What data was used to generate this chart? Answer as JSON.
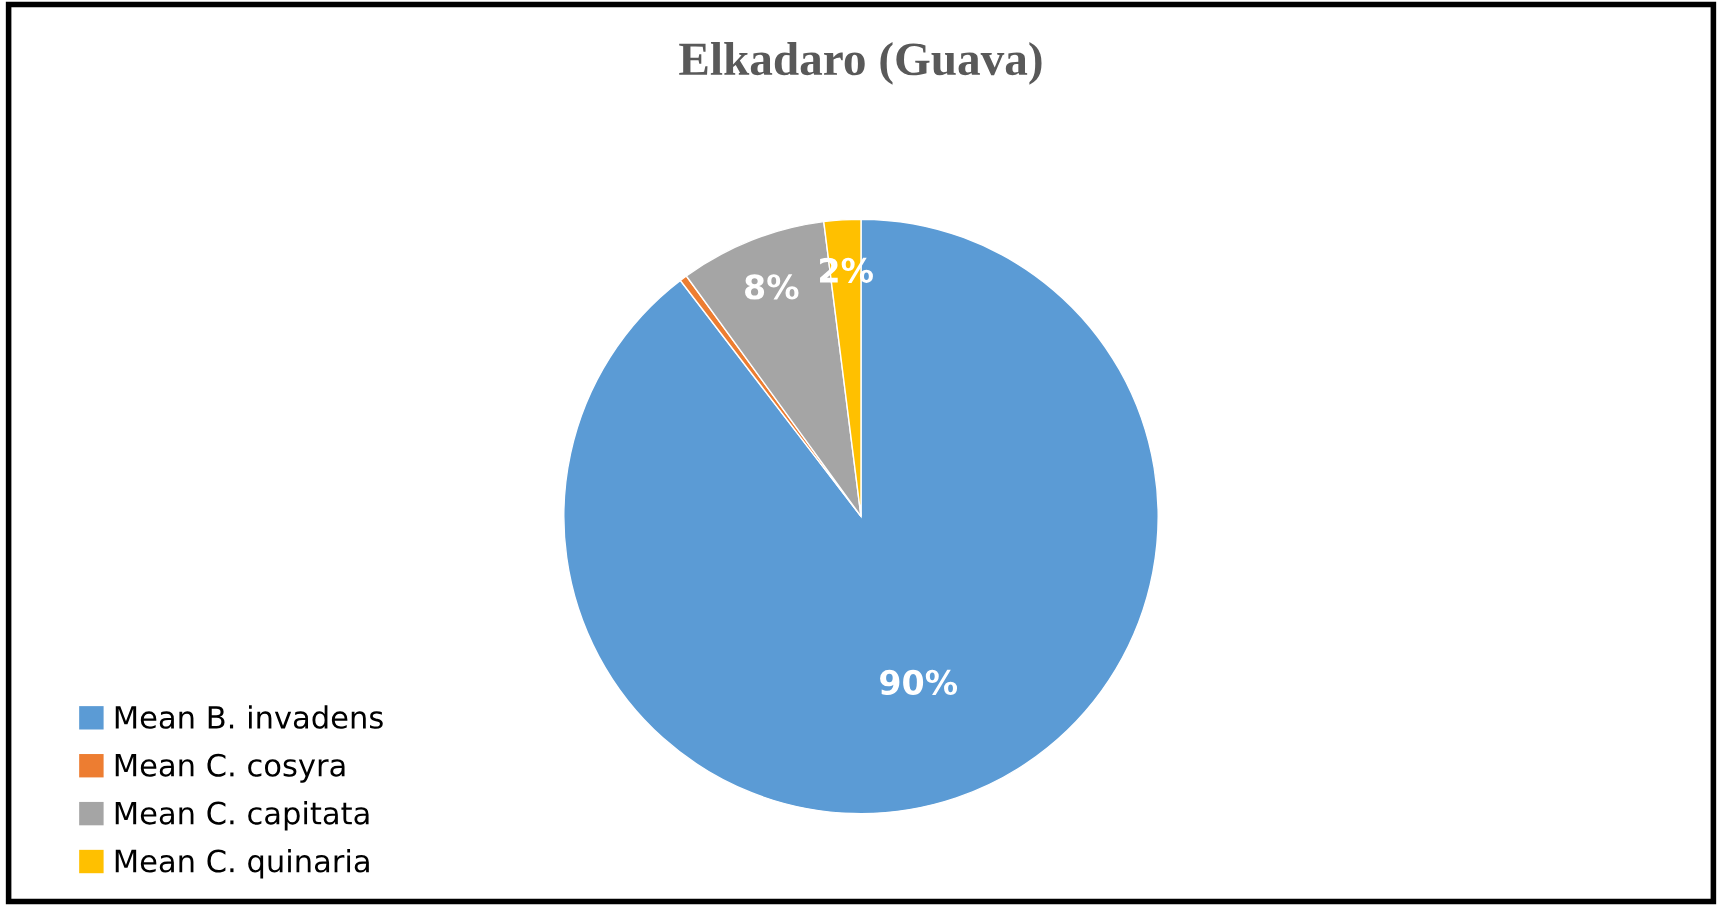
{
  "chart_data": {
    "type": "pie",
    "title": "Elkadaro (Guava)",
    "categories": [
      "Mean B. invadens",
      "Mean C. cosyra",
      "Mean C. capitata",
      "Mean C. quinaria"
    ],
    "values": [
      89.6,
      0.4,
      8,
      2
    ],
    "value_labels": [
      "90%",
      null,
      "8%",
      "2%"
    ],
    "colors": [
      "#5b9bd5",
      "#ed7d31",
      "#a5a5a5",
      "#ffc000"
    ],
    "legend": "bottom left"
  }
}
